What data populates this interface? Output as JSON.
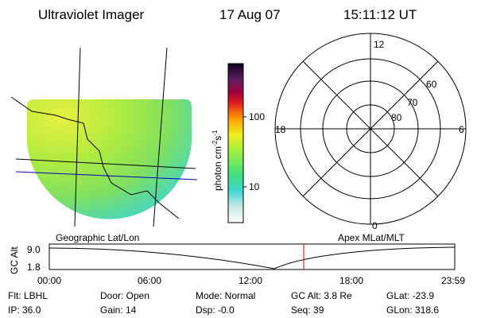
{
  "header": {
    "title": "Ultraviolet Imager",
    "date": "17 Aug 07",
    "time": "15:11:12 UT"
  },
  "colorbar": {
    "label": "photon cm",
    "exp1": "-2",
    "unit2": "s",
    "exp2": "-1",
    "ticks": [
      "100",
      "10"
    ]
  },
  "image_caption": "Geographic Lat/Lon",
  "polar": {
    "caption": "Apex MLat/MLT",
    "mlt_labels": [
      "12",
      "18",
      "6",
      "0"
    ],
    "lat_labels": [
      "60",
      "70",
      "80"
    ]
  },
  "altitude": {
    "ylabel": "GC Alt",
    "yticks": [
      "9.0",
      "1.8"
    ],
    "xticks": [
      "00:00",
      "06:00",
      "12:00",
      "18:00",
      "23:59"
    ]
  },
  "info": {
    "rows": [
      [
        "Flt: LBHL",
        "Door: Open",
        "Mode: Normal",
        "GC Alt: 3.8 Re",
        "GLat: -23.9"
      ],
      [
        "IP: 36.0",
        "Gain: 14",
        "Dsp: -0.0",
        "Seq: 39",
        "GLon: 318.6"
      ]
    ]
  }
}
